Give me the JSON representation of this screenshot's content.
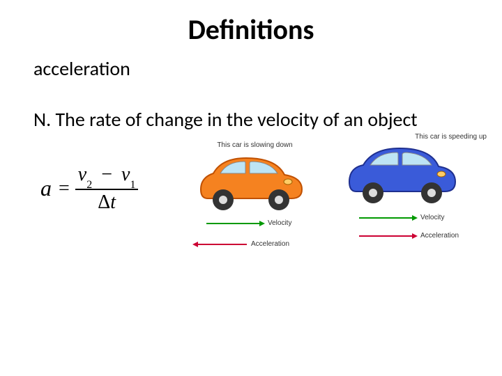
{
  "title": "Definitions",
  "term": "acceleration",
  "definition": "N. The rate of change in the velocity of an object",
  "formula": {
    "lhs": "a",
    "equals": "=",
    "numerator_v2": "v",
    "numerator_v2_sub": "2",
    "numerator_minus": "−",
    "numerator_v1": "v",
    "numerator_v1_sub": "1",
    "denominator_delta": "Δ",
    "denominator_t": "t"
  },
  "car1": {
    "caption": "This car is slowing down",
    "body_color": "#f58220",
    "body_stroke": "#c05000",
    "window_color": "#bde4f5",
    "wheel_fill": "#333333",
    "wheel_hub": "#dddddd",
    "velocity_label": "Velocity",
    "velocity_arrow_color": "#009900",
    "velocity_arrow_width": 82,
    "velocity_direction": "right",
    "acceleration_label": "Acceleration",
    "acceleration_arrow_color": "#cc0033",
    "acceleration_arrow_width": 76,
    "acceleration_direction": "left"
  },
  "car2": {
    "caption": "This car is speeding up",
    "body_color": "#3a5bd9",
    "body_stroke": "#1e2f8f",
    "window_color": "#bde4f5",
    "wheel_fill": "#333333",
    "wheel_hub": "#dddddd",
    "velocity_label": "Velocity",
    "velocity_arrow_color": "#009900",
    "velocity_arrow_width": 82,
    "velocity_direction": "right",
    "acceleration_label": "Acceleration",
    "acceleration_arrow_color": "#cc0033",
    "acceleration_arrow_width": 82,
    "acceleration_direction": "right"
  },
  "colors": {
    "background": "#ffffff",
    "text": "#000000"
  }
}
